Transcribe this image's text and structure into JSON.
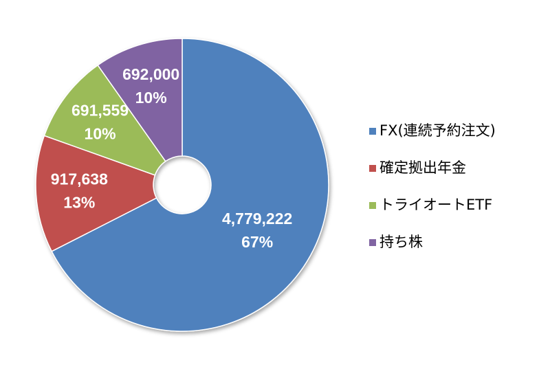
{
  "chart_data": {
    "type": "donut",
    "categories": [
      "FX(連続予約注文)",
      "確定拠出年金",
      "トライオートETF",
      "持ち株"
    ],
    "values": [
      4779222,
      917638,
      691559,
      692000
    ],
    "value_labels": [
      "4,779,222",
      "917,638",
      "691,559",
      "692,000"
    ],
    "shares": [
      67,
      13,
      10,
      10
    ],
    "share_labels": [
      "67%",
      "13%",
      "10%",
      "10%"
    ],
    "colors": [
      "#4f81bd",
      "#c0504d",
      "#9bbb59",
      "#8064a2"
    ],
    "legend": "right"
  }
}
